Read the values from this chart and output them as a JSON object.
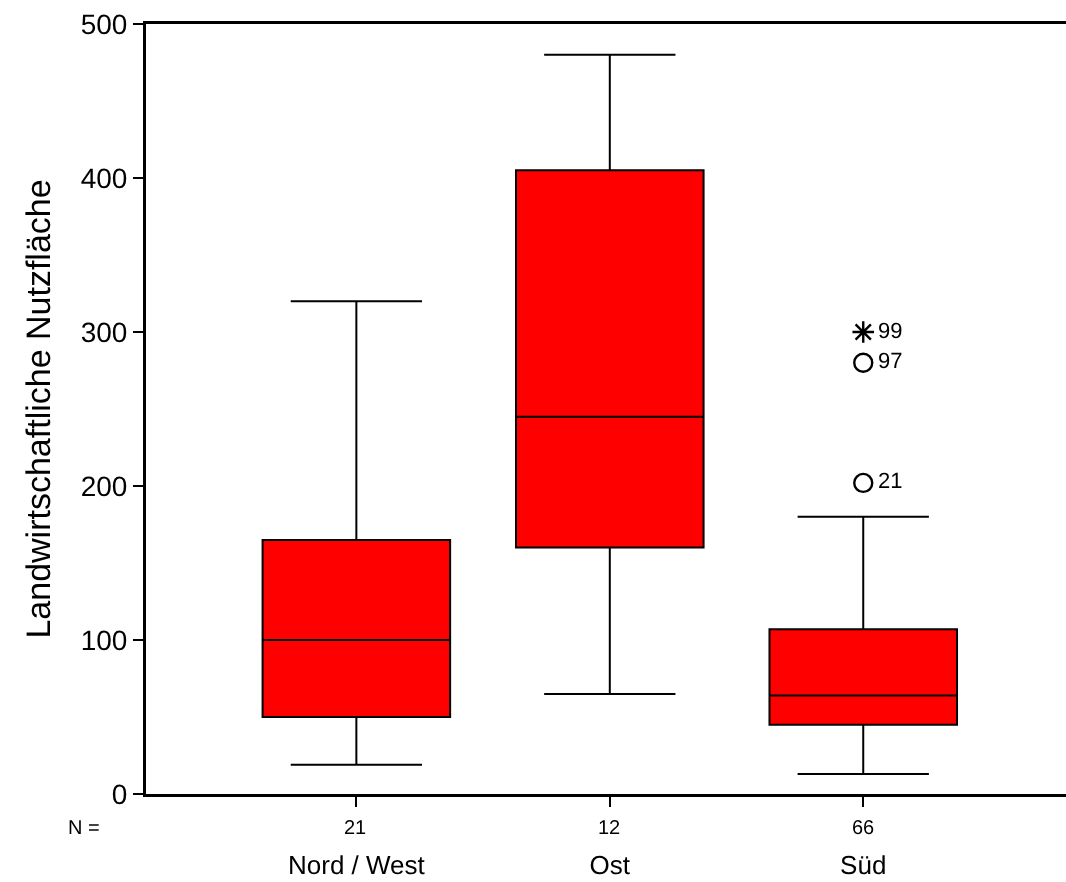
{
  "chart_data": {
    "type": "box",
    "ylabel": "Landwirtschaftliche Nutzfläche",
    "categories": [
      "Nord / West",
      "Ost",
      "Süd"
    ],
    "ylim": [
      0,
      500
    ],
    "yticks": [
      0,
      100,
      200,
      300,
      400,
      500
    ],
    "grid": false,
    "series": [
      {
        "color": "#ff0000",
        "boxes": [
          {
            "low": 19,
            "q1": 50,
            "median": 100,
            "q3": 165,
            "high": 320
          },
          {
            "low": 65,
            "q1": 160,
            "median": 245,
            "q3": 405,
            "high": 480
          },
          {
            "low": 13,
            "q1": 45,
            "median": 64,
            "q3": 107,
            "high": 180
          }
        ]
      },
      {
        "type": "scatter",
        "color": "#000000",
        "marker": "circle",
        "x": [
          "Süd",
          "Süd"
        ],
        "values": [
          280,
          202
        ]
      },
      {
        "type": "scatter",
        "color": "#000000",
        "marker": "cross",
        "x": [
          "Süd"
        ],
        "values": [
          300
        ]
      }
    ],
    "annotations": [
      {
        "text": "99",
        "x": "Süd",
        "y": 300
      },
      {
        "text": "97",
        "x": "Süd",
        "y": 280
      },
      {
        "text": "21",
        "x": "Süd",
        "y": 202
      },
      "N =",
      "21",
      "12",
      "66"
    ]
  }
}
